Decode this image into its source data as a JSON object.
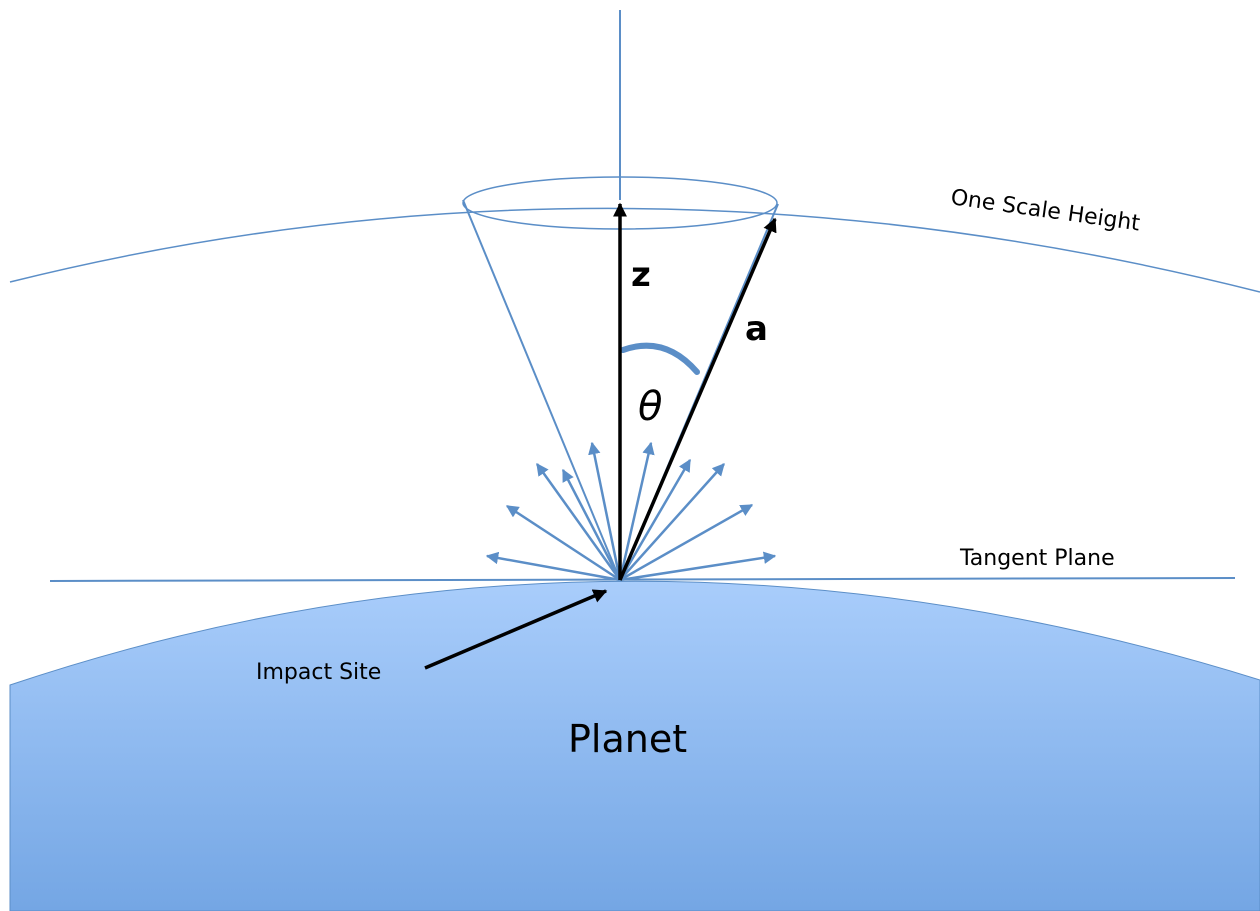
{
  "labels": {
    "scale_height": "One Scale Height",
    "tangent_plane": "Tangent Plane",
    "impact_site": "Impact Site",
    "planet": "Planet",
    "vector_z": "z",
    "vector_a": "a",
    "angle": "θ"
  },
  "colors": {
    "line_blue": "#5b8ec7",
    "arrow_black": "#000000",
    "planet_top": "#a9cdfb",
    "planet_bottom": "#78a9e6"
  }
}
